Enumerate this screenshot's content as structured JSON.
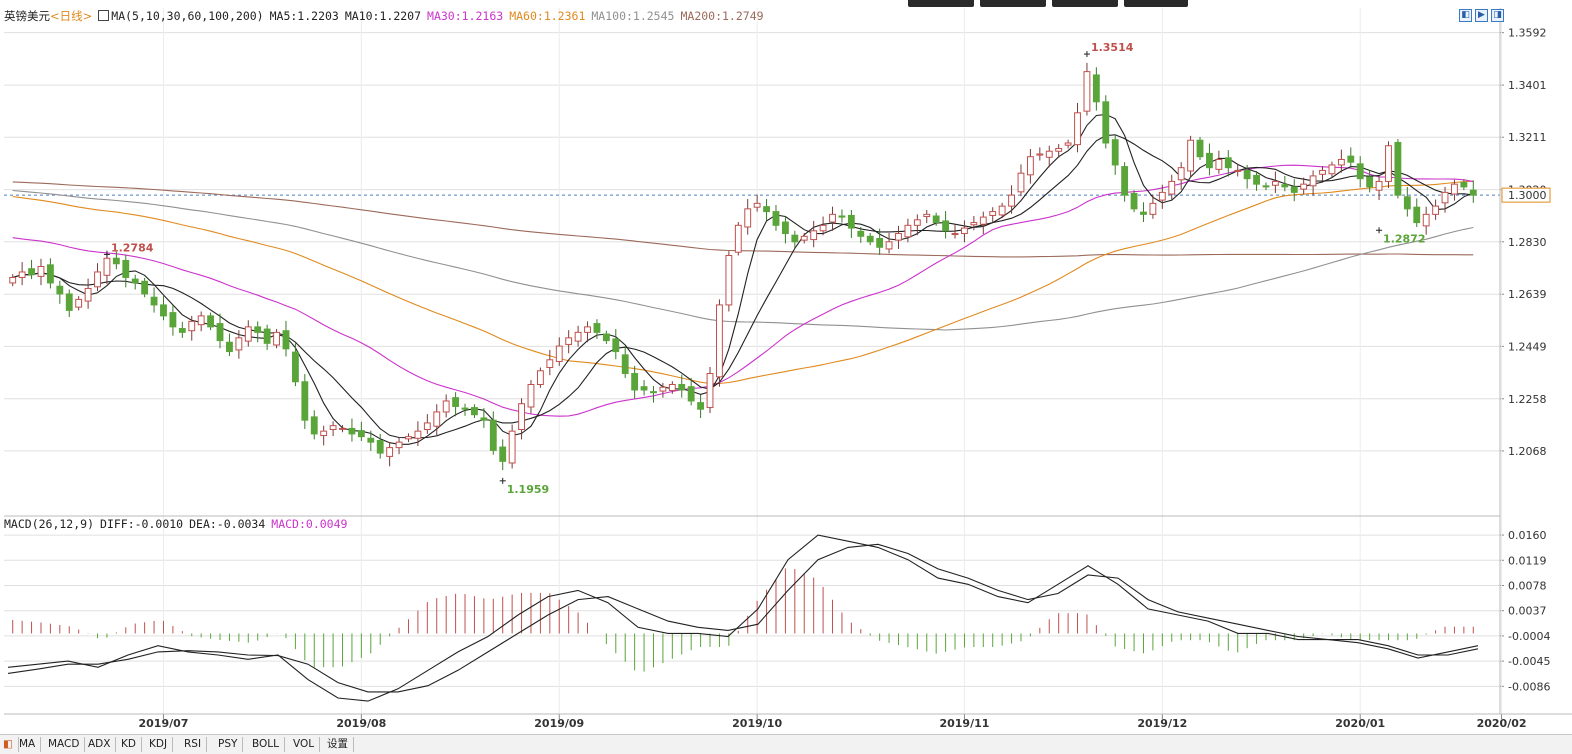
{
  "header": {
    "symbol": "英镑美元",
    "period": "<日线>",
    "ma_params": "MA(5,10,30,60,100,200)",
    "ma5": "MA5:1.2203",
    "ma10": "MA10:1.2207",
    "ma30": "MA30:1.2163",
    "ma60": "MA60:1.2361",
    "ma100": "MA100:1.2545",
    "ma200": "MA200:1.2749"
  },
  "macd_header": {
    "params": "MACD(26,12,9)",
    "diff": "DIFF:-0.0010",
    "dea": "DEA:-0.0034",
    "macd": "MACD:0.0049"
  },
  "colors": {
    "up": "#c0504d",
    "down": "#5aa53a",
    "ma5": "#222222",
    "ma10": "#222222",
    "ma30": "#cc33cc",
    "ma60": "#e08a1e",
    "ma100": "#909090",
    "ma200": "#9c6a5a",
    "grid": "#e0e0e0",
    "current_line": "#4a7fc0",
    "current_tag_border": "#e08a1e"
  },
  "tabs": [
    "MA",
    "MACD",
    "ADX",
    "KD",
    "KDJ",
    "RSI",
    "PSY",
    "BOLL",
    "VOL",
    "设置"
  ],
  "chart_data": [
    {
      "type": "candlestick",
      "title": "英镑美元",
      "y_ticks": [
        "1.3592",
        "1.3401",
        "1.3211",
        "1.3020",
        "1.2830",
        "1.2639",
        "1.2449",
        "1.2258",
        "1.2068"
      ],
      "y_tick_values": [
        1.3592,
        1.3401,
        1.3211,
        1.302,
        1.283,
        1.2639,
        1.2449,
        1.2258,
        1.2068
      ],
      "ylim": [
        1.186,
        1.366
      ],
      "x_ticks": [
        "2019/07",
        "2019/08",
        "2019/09",
        "2019/10",
        "2019/11",
        "2019/12",
        "2020/01",
        "2020/02"
      ],
      "current_price": "1.3000",
      "current_price_value": 1.3,
      "annotations": [
        {
          "text": "1.3514",
          "value": 1.3514,
          "kind": "high"
        },
        {
          "text": "1.2784",
          "value": 1.2784,
          "kind": "high"
        },
        {
          "text": "1.1959",
          "value": 1.1959,
          "kind": "low"
        },
        {
          "text": "1.2872",
          "value": 1.2872,
          "kind": "low"
        }
      ],
      "close_path": [
        1.27,
        1.272,
        1.271,
        1.274,
        1.268,
        1.264,
        1.258,
        1.262,
        1.266,
        1.272,
        1.277,
        1.275,
        1.27,
        1.268,
        1.264,
        1.26,
        1.256,
        1.252,
        1.25,
        1.254,
        1.256,
        1.252,
        1.247,
        1.243,
        1.248,
        1.252,
        1.25,
        1.246,
        1.25,
        1.244,
        1.232,
        1.218,
        1.213,
        1.214,
        1.216,
        1.215,
        1.213,
        1.212,
        1.21,
        1.206,
        1.208,
        1.21,
        1.212,
        1.214,
        1.217,
        1.221,
        1.225,
        1.223,
        1.222,
        1.22,
        1.218,
        1.207,
        1.203,
        1.214,
        1.224,
        1.231,
        1.236,
        1.24,
        1.245,
        1.248,
        1.25,
        1.252,
        1.25,
        1.247,
        1.243,
        1.235,
        1.229,
        1.229,
        1.228,
        1.23,
        1.231,
        1.229,
        1.225,
        1.222,
        1.235,
        1.26,
        1.278,
        1.289,
        1.295,
        1.297,
        1.294,
        1.289,
        1.286,
        1.283,
        1.285,
        1.287,
        1.289,
        1.293,
        1.292,
        1.288,
        1.285,
        1.283,
        1.281,
        1.283,
        1.286,
        1.289,
        1.291,
        1.293,
        1.29,
        1.287,
        1.286,
        1.288,
        1.29,
        1.292,
        1.294,
        1.296,
        1.3,
        1.308,
        1.314,
        1.315,
        1.316,
        1.317,
        1.319,
        1.33,
        1.345,
        1.334,
        1.319,
        1.311,
        1.3,
        1.295,
        1.293,
        1.297,
        1.301,
        1.305,
        1.31,
        1.32,
        1.314,
        1.31,
        1.313,
        1.31,
        1.309,
        1.306,
        1.304,
        1.303,
        1.305,
        1.303,
        1.301,
        1.304,
        1.307,
        1.309,
        1.311,
        1.313,
        1.312,
        1.306,
        1.303,
        1.305,
        1.318,
        1.3,
        1.295,
        1.29,
        1.293,
        1.296,
        1.301,
        1.304,
        1.303,
        1.3
      ],
      "ma_values": {
        "MA5": 1.2203,
        "MA10": 1.2207,
        "MA30": 1.2163,
        "MA60": 1.2361,
        "MA100": 1.2545,
        "MA200": 1.2749
      }
    },
    {
      "type": "macd",
      "title": "MACD(26,12,9)",
      "y_ticks": [
        "0.0160",
        "0.0119",
        "0.0078",
        "0.0037",
        "-0.0004",
        "-0.0045",
        "-0.0086"
      ],
      "y_tick_values": [
        0.016,
        0.0119,
        0.0078,
        0.0037,
        -0.0004,
        -0.0045,
        -0.0086
      ],
      "ylim": [
        -0.0118,
        0.0178
      ],
      "diff_path": [
        -0.0055,
        -0.005,
        -0.0045,
        -0.0055,
        -0.0035,
        -0.002,
        -0.003,
        -0.0035,
        -0.0042,
        -0.0035,
        -0.0075,
        -0.0105,
        -0.011,
        -0.009,
        -0.006,
        -0.003,
        -0.0005,
        0.003,
        0.006,
        0.007,
        0.005,
        0.001,
        0.0,
        0.0,
        -0.0005,
        0.004,
        0.012,
        0.016,
        0.015,
        0.014,
        0.012,
        0.009,
        0.008,
        0.006,
        0.005,
        0.008,
        0.011,
        0.008,
        0.004,
        0.003,
        0.002,
        0.0,
        0.0,
        -0.001,
        -0.001,
        -0.0015,
        -0.0025,
        -0.004,
        -0.003,
        -0.002
      ],
      "dea_path": [
        -0.0065,
        -0.0058,
        -0.005,
        -0.005,
        -0.0042,
        -0.003,
        -0.0028,
        -0.003,
        -0.0035,
        -0.0036,
        -0.005,
        -0.008,
        -0.0095,
        -0.0095,
        -0.0085,
        -0.006,
        -0.003,
        0.0,
        0.003,
        0.0055,
        0.006,
        0.004,
        0.002,
        0.001,
        0.0005,
        0.0015,
        0.007,
        0.012,
        0.014,
        0.0145,
        0.013,
        0.0105,
        0.009,
        0.007,
        0.0055,
        0.0065,
        0.0095,
        0.009,
        0.0055,
        0.0035,
        0.0025,
        0.0015,
        0.0005,
        -0.0005,
        -0.001,
        -0.001,
        -0.002,
        -0.0035,
        -0.0035,
        -0.0025
      ]
    }
  ]
}
